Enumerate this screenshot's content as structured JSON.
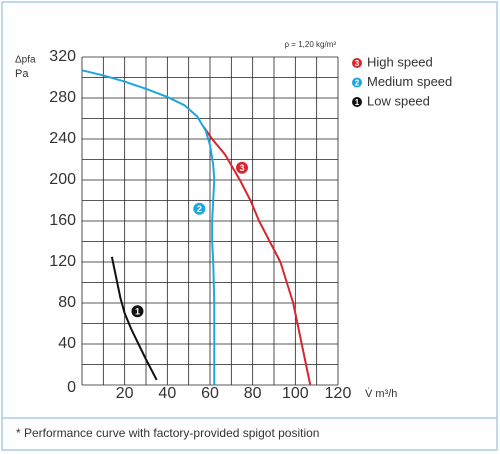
{
  "chart_data": {
    "type": "line",
    "y_label_top": "Δpfa",
    "y_label_unit": "Pa",
    "x_label": "V̇ m³/h",
    "annotation": "ρ = 1,20 kg/m³",
    "footnote": "* Performance curve with factory-provided spigot position",
    "xlim": [
      0,
      120
    ],
    "ylim": [
      0,
      320
    ],
    "xticks": [
      20,
      40,
      60,
      80,
      100,
      120
    ],
    "yticks": [
      0,
      40,
      80,
      120,
      160,
      200,
      240,
      280,
      320
    ],
    "xgrid": [
      0,
      10,
      20,
      30,
      40,
      50,
      60,
      70,
      80,
      90,
      100,
      110,
      120
    ],
    "ygrid": [
      0,
      20,
      40,
      60,
      80,
      100,
      120,
      140,
      160,
      180,
      200,
      220,
      240,
      260,
      280,
      300,
      320
    ],
    "series": [
      {
        "name": "High speed",
        "marker": "3",
        "color": "#d7262f",
        "x": [
          57,
          61,
          67,
          74,
          79,
          83,
          88,
          93,
          96,
          99,
          101,
          103,
          105,
          107
        ],
        "values": [
          252,
          240,
          225,
          200,
          180,
          160,
          140,
          120,
          100,
          80,
          60,
          40,
          20,
          0
        ]
      },
      {
        "name": "Medium speed",
        "marker": "2",
        "color": "#1ea7dc",
        "x": [
          0,
          10,
          20,
          30,
          40,
          48,
          54,
          58,
          60,
          61.5,
          62,
          61.5,
          61,
          61,
          61.5,
          62,
          62,
          62
        ],
        "values": [
          307,
          302,
          296,
          289,
          281,
          273,
          262,
          248,
          234,
          215,
          200,
          180,
          160,
          140,
          120,
          80,
          40,
          0
        ]
      },
      {
        "name": "Low speed",
        "marker": "1",
        "color": "#111111",
        "x": [
          14,
          16,
          18,
          20,
          23,
          26,
          30,
          33,
          35
        ],
        "values": [
          125,
          105,
          85,
          70,
          55,
          42,
          25,
          13,
          5
        ]
      }
    ]
  }
}
